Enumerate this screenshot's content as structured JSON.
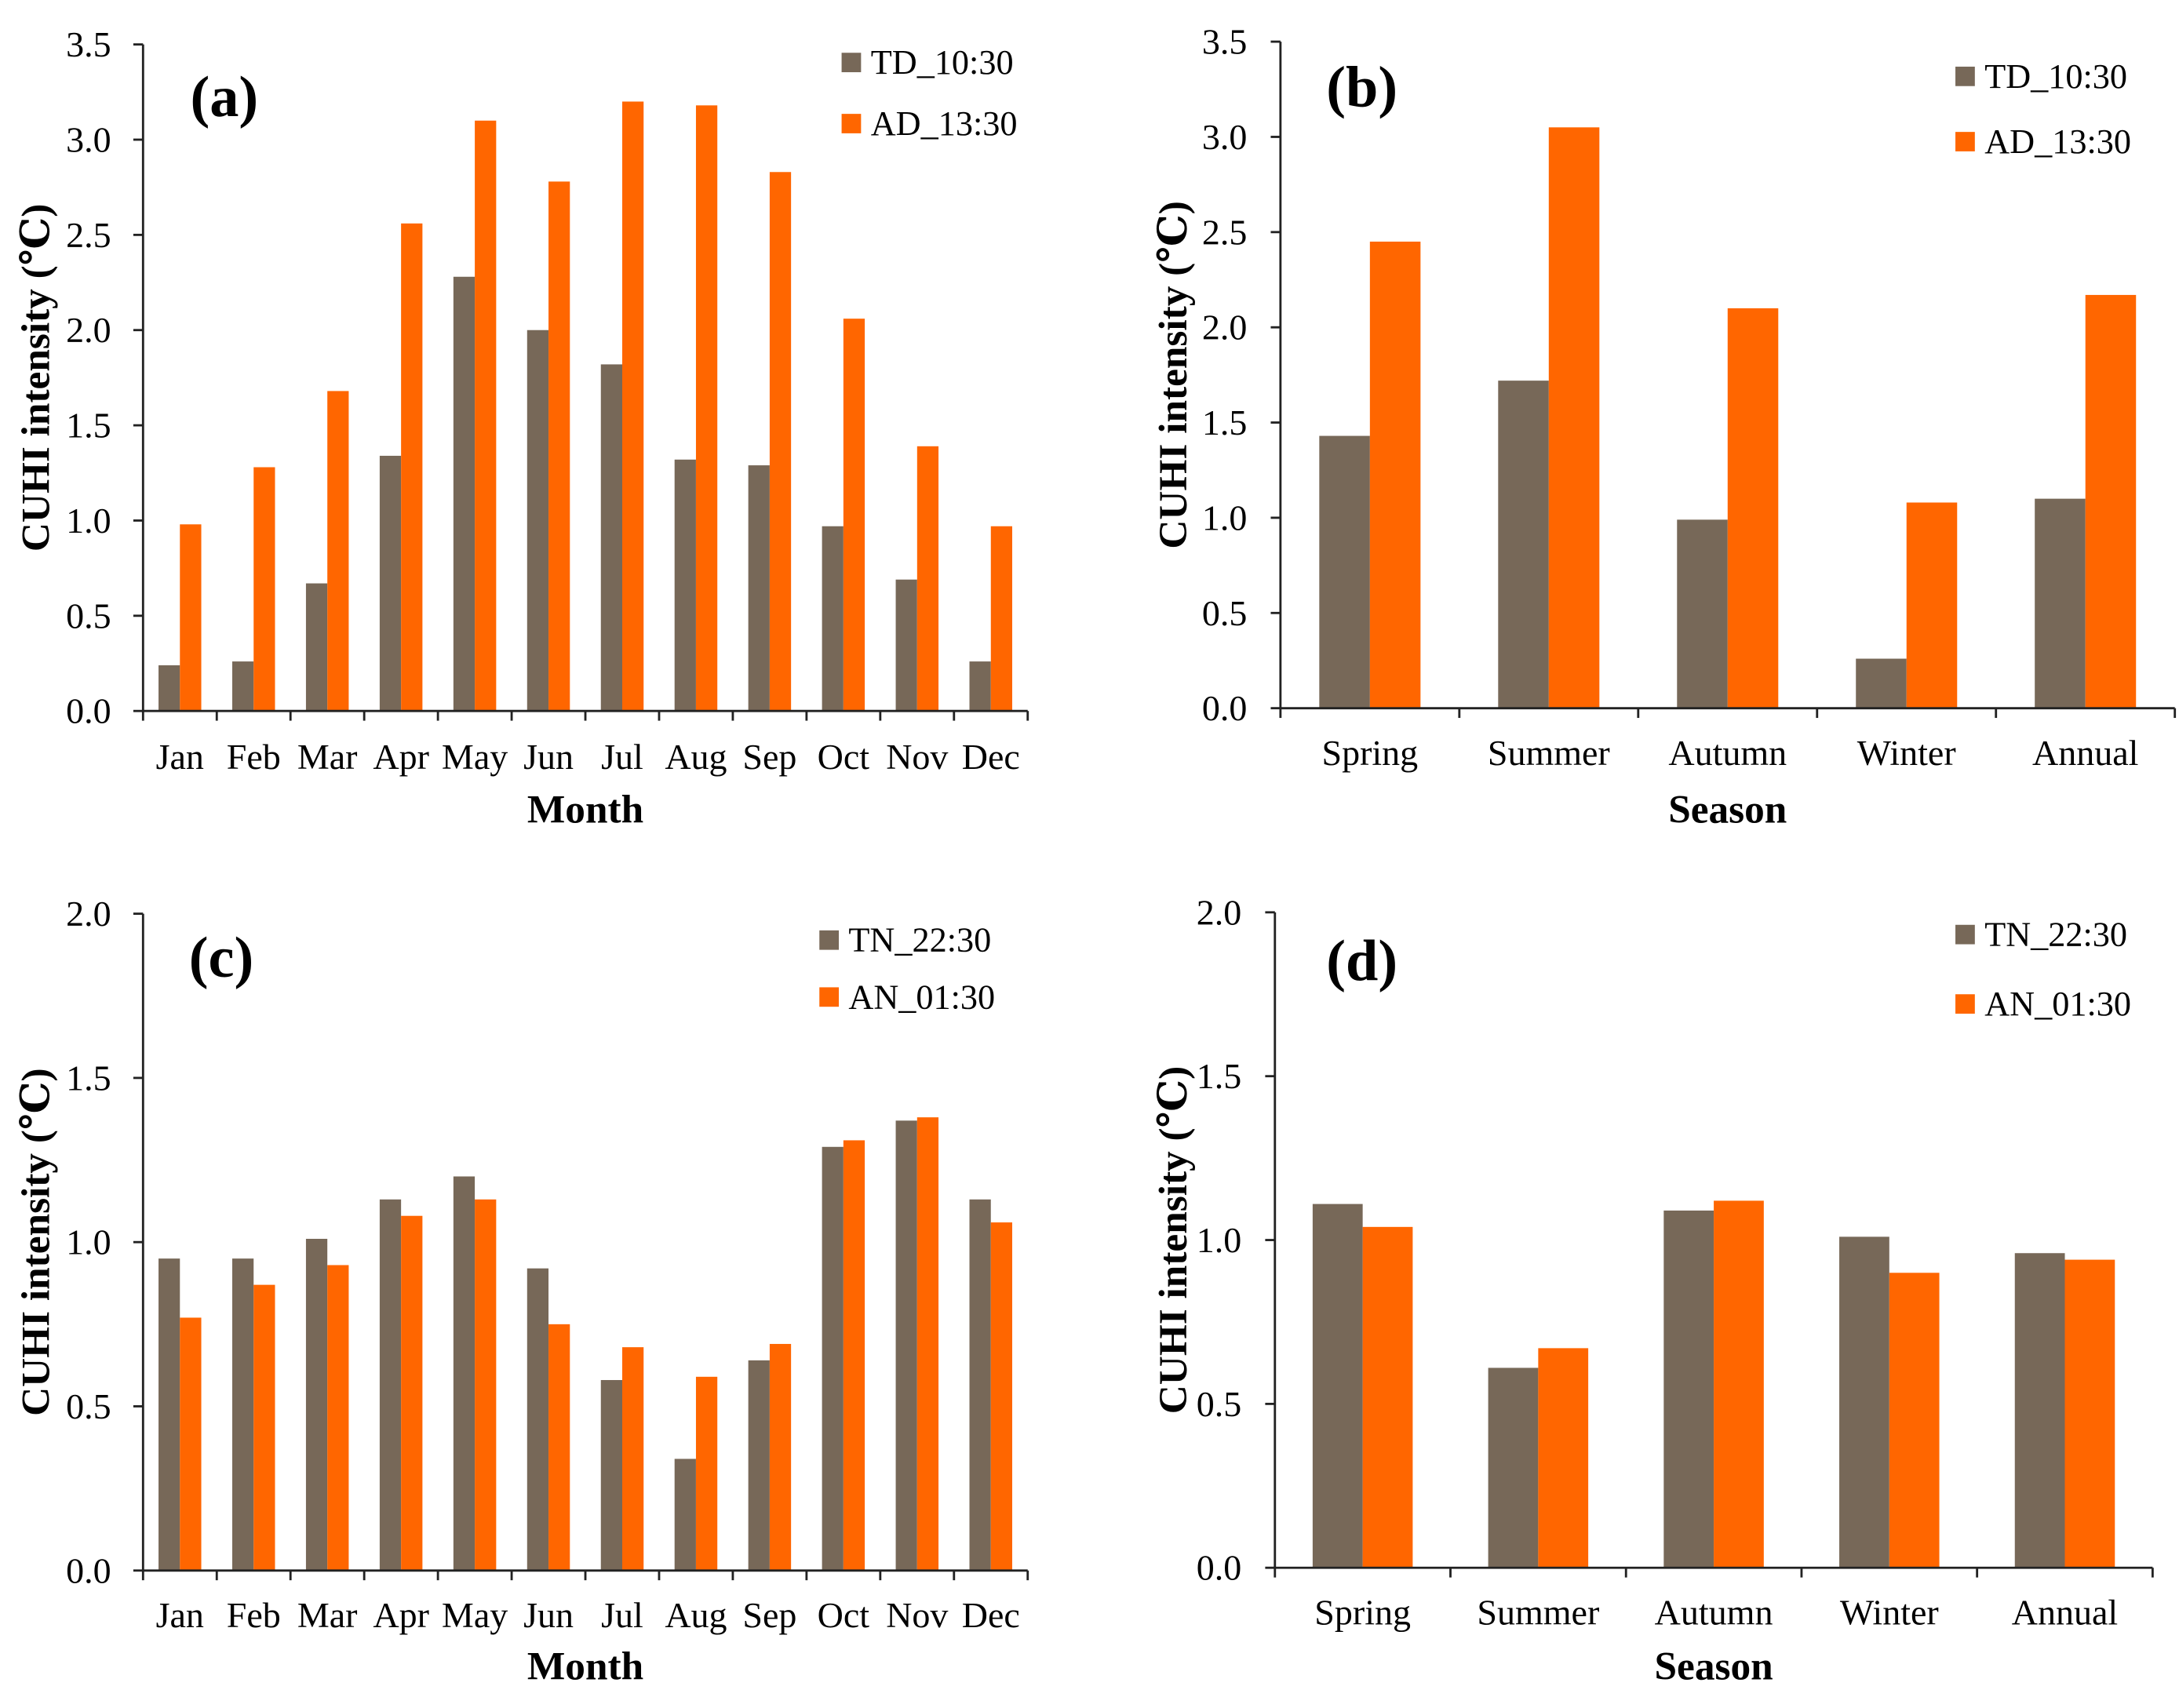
{
  "colors": {
    "series1": "#776858",
    "series2": "#ff6600",
    "axis": "#222222"
  },
  "chart_data": [
    {
      "panel_label": "(a)",
      "type": "bar",
      "categories": [
        "Jan",
        "Feb",
        "Mar",
        "Apr",
        "May",
        "Jun",
        "Jul",
        "Aug",
        "Sep",
        "Oct",
        "Nov",
        "Dec"
      ],
      "series": [
        {
          "name": "TD_10:30",
          "values": [
            0.24,
            0.26,
            0.67,
            1.34,
            2.28,
            2.0,
            1.82,
            1.32,
            1.29,
            0.97,
            0.69,
            0.26
          ]
        },
        {
          "name": "AD_13:30",
          "values": [
            0.98,
            1.28,
            1.68,
            2.56,
            3.1,
            2.78,
            3.2,
            3.18,
            2.83,
            2.06,
            1.39,
            0.97
          ]
        }
      ],
      "xlabel": "Month",
      "ylabel": "CUHI intensity (℃)",
      "ylim": [
        0,
        3.5
      ],
      "yticks": [
        "0.0",
        "0.5",
        "1.0",
        "1.5",
        "2.0",
        "2.5",
        "3.0",
        "3.5"
      ],
      "grid": false,
      "legend": "top-right"
    },
    {
      "panel_label": "(b)",
      "type": "bar",
      "categories": [
        "Spring",
        "Summer",
        "Autumn",
        "Winter",
        "Annual"
      ],
      "series": [
        {
          "name": "TD_10:30",
          "values": [
            1.43,
            1.72,
            0.99,
            0.26,
            1.1
          ]
        },
        {
          "name": "AD_13:30",
          "values": [
            2.45,
            3.05,
            2.1,
            1.08,
            2.17
          ]
        }
      ],
      "xlabel": "Season",
      "ylabel": "CUHI intensity (℃)",
      "ylim": [
        0,
        3.5
      ],
      "yticks": [
        "0.0",
        "0.5",
        "1.0",
        "1.5",
        "2.0",
        "2.5",
        "3.0",
        "3.5"
      ],
      "grid": false,
      "legend": "top-right"
    },
    {
      "panel_label": "(c)",
      "type": "bar",
      "categories": [
        "Jan",
        "Feb",
        "Mar",
        "Apr",
        "May",
        "Jun",
        "Jul",
        "Aug",
        "Sep",
        "Oct",
        "Nov",
        "Dec"
      ],
      "series": [
        {
          "name": "TN_22:30",
          "values": [
            0.95,
            0.95,
            1.01,
            1.13,
            1.2,
            0.92,
            0.58,
            0.34,
            0.64,
            1.29,
            1.37,
            1.13
          ]
        },
        {
          "name": "AN_01:30",
          "values": [
            0.77,
            0.87,
            0.93,
            1.08,
            1.13,
            0.75,
            0.68,
            0.59,
            0.69,
            1.31,
            1.38,
            1.06
          ]
        }
      ],
      "xlabel": "Month",
      "ylabel": "CUHI intensity (℃)",
      "ylim": [
        0,
        2.0
      ],
      "yticks": [
        "0.0",
        "0.5",
        "1.0",
        "1.5",
        "2.0"
      ],
      "grid": false,
      "legend": "top-right"
    },
    {
      "panel_label": "(d)",
      "type": "bar",
      "categories": [
        "Spring",
        "Summer",
        "Autumn",
        "Winter",
        "Annual"
      ],
      "series": [
        {
          "name": "TN_22:30",
          "values": [
            1.11,
            0.61,
            1.09,
            1.01,
            0.96
          ]
        },
        {
          "name": "AN_01:30",
          "values": [
            1.04,
            0.67,
            1.12,
            0.9,
            0.94
          ]
        }
      ],
      "xlabel": "Season",
      "ylabel": "CUHI intensity (℃)",
      "ylim": [
        0,
        2.0
      ],
      "yticks": [
        "0.0",
        "0.5",
        "1.0",
        "1.5",
        "2.0"
      ],
      "grid": false,
      "legend": "top-right"
    }
  ]
}
